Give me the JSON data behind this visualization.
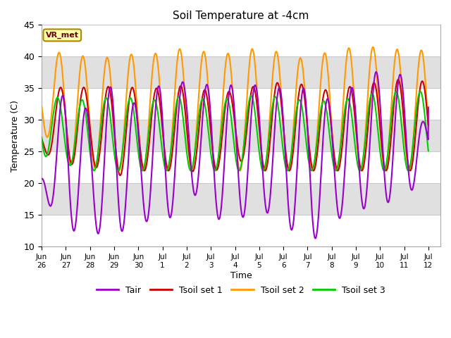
{
  "title": "Soil Temperature at -4cm",
  "xlabel": "Time",
  "ylabel": "Temperature (C)",
  "ylim": [
    10,
    45
  ],
  "xlim_days": [
    0.5,
    16.5
  ],
  "background_color": "#ffffff",
  "plot_bg_color": "#e0e0e0",
  "grid_color": "#ffffff",
  "colors": {
    "Tair": "#9900cc",
    "Tsoil_set1": "#cc0000",
    "Tsoil_set2": "#ff9900",
    "Tsoil_set3": "#00cc00"
  },
  "vr_met_label": "VR_met",
  "tick_labels": [
    "Jun\n26",
    "Jun\n27",
    "Jun\n28",
    "Jun\n29",
    "Jun\n30",
    "Jul\n1",
    "Jul\n2",
    "Jul\n3",
    "Jul\n4",
    "Jul\n5",
    "Jul\n6",
    "Jul\n7",
    "Jul\n8",
    "Jul\n9",
    "Jul\n10",
    "Jul\n11",
    "Jul\n12"
  ],
  "tick_positions": [
    0,
    1,
    2,
    3,
    4,
    5,
    6,
    7,
    8,
    9,
    10,
    11,
    12,
    13,
    14,
    15,
    16
  ],
  "yticks": [
    10,
    15,
    20,
    25,
    30,
    35,
    40,
    45
  ],
  "n_points": 2000,
  "period": 1.0,
  "line_width": 1.5,
  "day_peaks_tair": [
    21.5,
    36.0,
    31.0,
    36.0,
    32.0,
    36.0,
    36.0,
    35.5,
    35.5,
    35.5,
    35.0,
    35.0,
    33.0,
    35.5,
    38.0,
    37.0,
    28.0
  ],
  "day_troughs_tair": [
    18.5,
    12.5,
    12.5,
    11.2,
    15.0,
    12.0,
    20.0,
    14.5,
    14.0,
    16.0,
    14.0,
    10.0,
    14.0,
    15.5,
    17.0,
    17.0,
    23.0
  ],
  "day_peaks_s1": [
    29.0,
    37.0,
    34.5,
    35.5,
    35.0,
    35.0,
    35.5,
    34.5,
    34.5,
    35.5,
    36.0,
    35.5,
    34.5,
    35.5,
    36.0,
    36.5,
    36.0
  ],
  "day_troughs_s1": [
    25.0,
    23.0,
    23.0,
    21.0,
    22.0,
    22.0,
    22.0,
    21.5,
    24.0,
    22.0,
    22.0,
    22.0,
    22.0,
    22.0,
    22.0,
    22.0,
    22.0
  ],
  "day_peaks_s2": [
    38.5,
    41.5,
    39.5,
    40.0,
    40.5,
    40.5,
    41.5,
    40.5,
    40.5,
    41.5,
    40.5,
    39.5,
    41.0,
    41.5,
    41.5,
    41.0,
    41.0
  ],
  "day_troughs_s2": [
    28.5,
    23.0,
    22.5,
    22.0,
    22.0,
    22.0,
    22.0,
    22.0,
    22.0,
    22.0,
    22.0,
    22.0,
    22.0,
    22.0,
    22.0,
    22.0,
    22.0
  ],
  "day_peaks_s3": [
    35.5,
    32.5,
    33.5,
    33.5,
    33.5,
    33.0,
    34.0,
    33.0,
    33.5,
    34.0,
    33.5,
    33.0,
    33.0,
    33.5,
    34.5,
    34.5,
    34.5
  ],
  "day_troughs_s3": [
    24.5,
    23.0,
    22.0,
    22.0,
    22.0,
    22.0,
    22.0,
    22.0,
    22.0,
    22.0,
    22.0,
    22.0,
    22.0,
    22.0,
    22.0,
    22.0,
    22.0
  ],
  "phase_peak": 3.665,
  "phase_lag1": 0.524,
  "phase_lag2": 0.785,
  "phase_lag3": 1.047
}
